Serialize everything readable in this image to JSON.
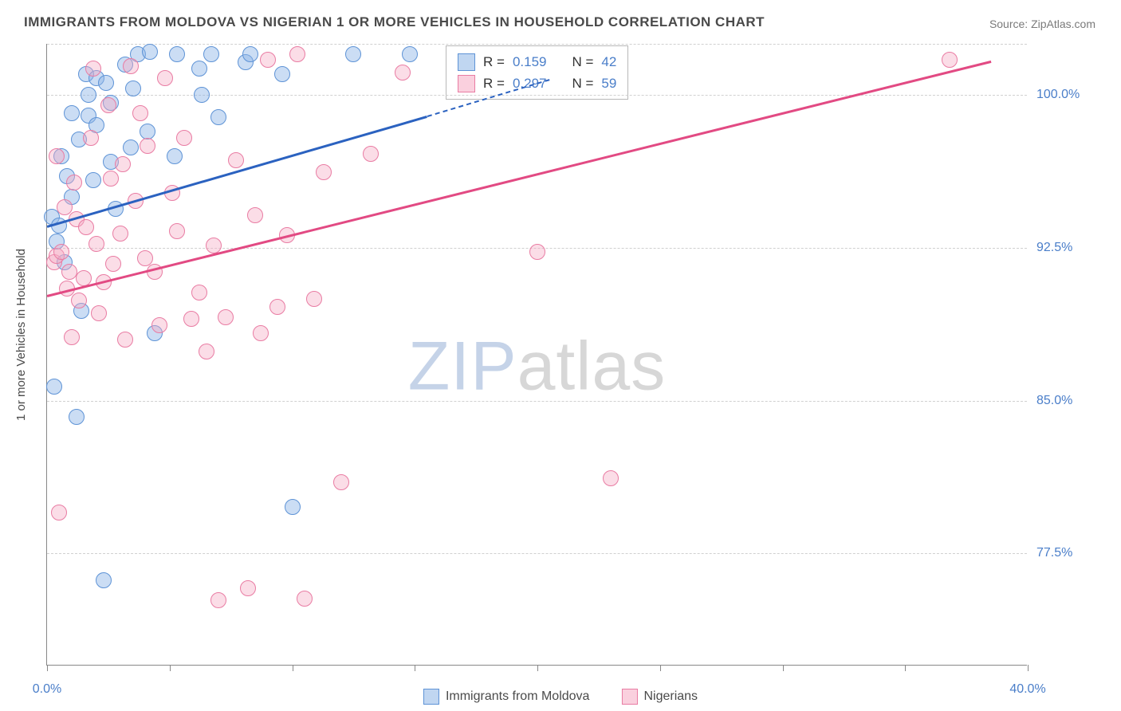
{
  "title": "IMMIGRANTS FROM MOLDOVA VS NIGERIAN 1 OR MORE VEHICLES IN HOUSEHOLD CORRELATION CHART",
  "source": "Source: ZipAtlas.com",
  "y_axis_label": "1 or more Vehicles in Household",
  "watermark": {
    "part1": "ZIP",
    "part2": "atlas"
  },
  "chart": {
    "type": "scatter",
    "xlim": [
      0,
      40
    ],
    "ylim": [
      72,
      102.5
    ],
    "x_ticks": [
      0,
      5,
      10,
      15,
      20,
      25,
      30,
      35,
      40
    ],
    "x_tick_labels": {
      "0": "0.0%",
      "40": "40.0%"
    },
    "y_grid": [
      77.5,
      85.0,
      92.5,
      100.0,
      102.5
    ],
    "y_tick_labels": {
      "77.5": "77.5%",
      "85.0": "85.0%",
      "92.5": "92.5%",
      "100.0": "100.0%"
    },
    "background_color": "#ffffff",
    "grid_color": "#d0d0d0",
    "axis_color": "#888888",
    "label_color": "#4a7ec9",
    "marker_radius": 10,
    "marker_stroke_width": 1.5,
    "series": [
      {
        "id": "moldova",
        "label": "Immigrants from Moldova",
        "fill": "rgba(140,180,230,0.45)",
        "stroke": "#5e93d6",
        "line_color": "#2b62c0",
        "R": "0.159",
        "N": "42",
        "trend": {
          "x1": 0,
          "y1": 93.6,
          "x2": 15.5,
          "y2": 99.0,
          "x2_dash": 20.5,
          "y2_dash": 100.8
        },
        "points": [
          [
            0.2,
            94.0
          ],
          [
            0.3,
            85.7
          ],
          [
            0.4,
            92.8
          ],
          [
            0.5,
            93.6
          ],
          [
            0.6,
            97.0
          ],
          [
            0.7,
            91.8
          ],
          [
            0.8,
            96.0
          ],
          [
            1.0,
            99.1
          ],
          [
            1.0,
            95.0
          ],
          [
            1.2,
            84.2
          ],
          [
            1.3,
            97.8
          ],
          [
            1.4,
            89.4
          ],
          [
            1.6,
            101.0
          ],
          [
            1.7,
            100.0
          ],
          [
            1.7,
            99.0
          ],
          [
            1.9,
            95.8
          ],
          [
            2.0,
            98.5
          ],
          [
            2.0,
            100.8
          ],
          [
            2.3,
            76.2
          ],
          [
            2.4,
            100.6
          ],
          [
            2.6,
            96.7
          ],
          [
            2.6,
            99.6
          ],
          [
            2.8,
            94.4
          ],
          [
            3.2,
            101.5
          ],
          [
            3.4,
            97.4
          ],
          [
            3.5,
            100.3
          ],
          [
            3.7,
            102.0
          ],
          [
            4.1,
            98.2
          ],
          [
            4.2,
            102.1
          ],
          [
            4.4,
            88.3
          ],
          [
            5.2,
            97.0
          ],
          [
            5.3,
            102.0
          ],
          [
            6.2,
            101.3
          ],
          [
            6.3,
            100.0
          ],
          [
            6.7,
            102.0
          ],
          [
            7.0,
            98.9
          ],
          [
            8.1,
            101.6
          ],
          [
            8.3,
            102.0
          ],
          [
            9.6,
            101.0
          ],
          [
            10.0,
            79.8
          ],
          [
            12.5,
            102.0
          ],
          [
            14.8,
            102.0
          ]
        ]
      },
      {
        "id": "nigerians",
        "label": "Nigerians",
        "fill": "rgba(245,170,195,0.40)",
        "stroke": "#e97ca3",
        "line_color": "#e24a83",
        "R": "0.297",
        "N": "59",
        "trend": {
          "x1": 0,
          "y1": 90.2,
          "x2": 38.5,
          "y2": 101.7
        },
        "points": [
          [
            0.3,
            91.8
          ],
          [
            0.4,
            92.1
          ],
          [
            0.4,
            97.0
          ],
          [
            0.5,
            79.5
          ],
          [
            0.6,
            92.3
          ],
          [
            0.7,
            94.5
          ],
          [
            0.8,
            90.5
          ],
          [
            0.9,
            91.3
          ],
          [
            1.0,
            88.1
          ],
          [
            1.1,
            95.7
          ],
          [
            1.2,
            93.9
          ],
          [
            1.3,
            89.9
          ],
          [
            1.5,
            91.0
          ],
          [
            1.6,
            93.5
          ],
          [
            1.8,
            97.9
          ],
          [
            1.9,
            101.3
          ],
          [
            2.0,
            92.7
          ],
          [
            2.1,
            89.3
          ],
          [
            2.3,
            90.8
          ],
          [
            2.5,
            99.5
          ],
          [
            2.6,
            95.9
          ],
          [
            2.7,
            91.7
          ],
          [
            3.0,
            93.2
          ],
          [
            3.1,
            96.6
          ],
          [
            3.2,
            88.0
          ],
          [
            3.4,
            101.4
          ],
          [
            3.6,
            94.8
          ],
          [
            3.8,
            99.1
          ],
          [
            4.0,
            92.0
          ],
          [
            4.1,
            97.5
          ],
          [
            4.4,
            91.3
          ],
          [
            4.6,
            88.7
          ],
          [
            4.8,
            100.8
          ],
          [
            5.1,
            95.2
          ],
          [
            5.3,
            93.3
          ],
          [
            5.6,
            97.9
          ],
          [
            5.9,
            89.0
          ],
          [
            6.2,
            90.3
          ],
          [
            6.5,
            87.4
          ],
          [
            6.8,
            92.6
          ],
          [
            7.0,
            75.2
          ],
          [
            7.3,
            89.1
          ],
          [
            7.7,
            96.8
          ],
          [
            8.2,
            75.8
          ],
          [
            8.5,
            94.1
          ],
          [
            8.7,
            88.3
          ],
          [
            9.0,
            101.7
          ],
          [
            9.4,
            89.6
          ],
          [
            9.8,
            93.1
          ],
          [
            10.2,
            102.0
          ],
          [
            10.5,
            75.3
          ],
          [
            10.9,
            90.0
          ],
          [
            11.3,
            96.2
          ],
          [
            12.0,
            81.0
          ],
          [
            13.2,
            97.1
          ],
          [
            14.5,
            101.1
          ],
          [
            20.0,
            92.3
          ],
          [
            23.0,
            81.2
          ],
          [
            36.8,
            101.7
          ]
        ]
      }
    ]
  },
  "stats_box": {
    "rows": [
      {
        "swatch_fill": "rgba(140,180,230,0.55)",
        "swatch_stroke": "#5e93d6",
        "R_label": "R =",
        "R": "0.159",
        "N_label": "N =",
        "N": "42"
      },
      {
        "swatch_fill": "rgba(245,170,195,0.55)",
        "swatch_stroke": "#e97ca3",
        "R_label": "R =",
        "R": "0.297",
        "N_label": "N =",
        "N": "59"
      }
    ]
  },
  "legend": [
    {
      "swatch_fill": "rgba(140,180,230,0.55)",
      "swatch_stroke": "#5e93d6",
      "label": "Immigrants from Moldova"
    },
    {
      "swatch_fill": "rgba(245,170,195,0.55)",
      "swatch_stroke": "#e97ca3",
      "label": "Nigerians"
    }
  ]
}
